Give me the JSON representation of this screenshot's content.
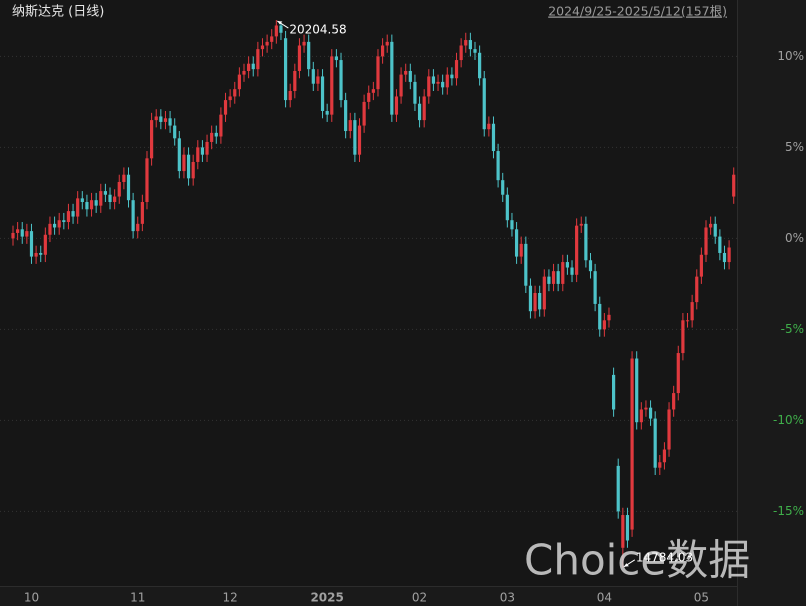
{
  "chart_data": {
    "type": "candlestick",
    "title": "纳斯达克 (日线)",
    "range_label": "2024/9/25-2025/5/12(157根)",
    "watermark": "Choice数据",
    "annotations": [
      {
        "text": "20204.58"
      },
      {
        "text": "14784.03"
      }
    ],
    "up_color": "#e0393e",
    "down_color": "#4dc3c9",
    "negative_tick_color": "#3fae4a",
    "tick_color": "#a0a0a0",
    "grid": true,
    "ylim": [
      -19.1,
      13.1
    ],
    "yticks": [
      {
        "value": 10,
        "label": "10%"
      },
      {
        "value": 5,
        "label": "5%"
      },
      {
        "value": 0,
        "label": "0%"
      },
      {
        "value": -5,
        "label": "-5%"
      },
      {
        "value": -10,
        "label": "-10%"
      },
      {
        "value": -15,
        "label": "-15%"
      }
    ],
    "categories": [
      null,
      null,
      null,
      null,
      "10",
      null,
      null,
      null,
      null,
      null,
      null,
      null,
      null,
      null,
      null,
      null,
      null,
      null,
      null,
      null,
      null,
      null,
      null,
      null,
      null,
      null,
      null,
      "11",
      null,
      null,
      null,
      null,
      null,
      null,
      null,
      null,
      null,
      null,
      null,
      null,
      null,
      null,
      null,
      null,
      null,
      null,
      null,
      "12",
      null,
      null,
      null,
      null,
      null,
      null,
      null,
      null,
      null,
      null,
      null,
      null,
      null,
      null,
      null,
      null,
      null,
      null,
      null,
      null,
      "2025",
      null,
      null,
      null,
      null,
      null,
      null,
      null,
      null,
      null,
      null,
      null,
      null,
      null,
      null,
      null,
      null,
      null,
      null,
      null,
      "02",
      null,
      null,
      null,
      null,
      null,
      null,
      null,
      null,
      null,
      null,
      null,
      null,
      null,
      null,
      null,
      null,
      null,
      null,
      "03",
      null,
      null,
      null,
      null,
      null,
      null,
      null,
      null,
      null,
      null,
      null,
      null,
      null,
      null,
      null,
      null,
      null,
      null,
      null,
      null,
      "04",
      null,
      null,
      null,
      null,
      null,
      null,
      null,
      null,
      null,
      null,
      null,
      null,
      null,
      null,
      null,
      null,
      null,
      null,
      null,
      null,
      "05",
      null,
      null,
      null,
      null,
      null,
      null,
      null
    ],
    "open": [
      0.0,
      0.3,
      0.5,
      0.1,
      0.4,
      -1.0,
      -0.8,
      -0.9,
      0.2,
      0.8,
      0.6,
      1.0,
      0.9,
      1.5,
      1.2,
      2.2,
      2.0,
      1.6,
      2.1,
      1.8,
      2.6,
      2.4,
      2.0,
      2.3,
      3.1,
      3.5,
      2.1,
      0.4,
      0.8,
      2.0,
      4.4,
      6.5,
      6.7,
      6.4,
      6.6,
      6.2,
      5.5,
      3.7,
      4.6,
      3.3,
      4.2,
      5.0,
      4.6,
      5.3,
      5.8,
      5.6,
      6.8,
      7.6,
      7.8,
      8.2,
      9.0,
      9.2,
      9.6,
      9.3,
      10.4,
      10.6,
      10.8,
      11.1,
      11.7,
      11.0,
      7.6,
      8.1,
      9.2,
      10.6,
      10.8,
      9.3,
      8.5,
      8.9,
      7.0,
      6.8,
      10.0,
      9.8,
      7.6,
      5.9,
      6.5,
      4.6,
      6.2,
      7.5,
      8.0,
      8.2,
      10.0,
      10.6,
      10.8,
      6.8,
      7.8,
      9.0,
      9.2,
      8.6,
      7.4,
      6.5,
      7.8,
      8.9,
      8.5,
      8.6,
      8.3,
      9.0,
      8.8,
      9.8,
      10.6,
      10.9,
      10.4,
      10.2,
      8.8,
      6.0,
      6.3,
      4.8,
      3.2,
      2.4,
      1.0,
      0.5,
      -1.0,
      -0.3,
      -2.6,
      -4.0,
      -3.0,
      -3.9,
      -2.1,
      -2.5,
      -1.8,
      -2.5,
      -1.3,
      -1.6,
      -2.0,
      0.7,
      0.8,
      -1.2,
      -1.8,
      -3.6,
      -5.0,
      -4.5,
      -7.5,
      -12.5,
      -17.0,
      -15.2,
      -16.0,
      -6.6,
      -10.1,
      -9.4,
      -9.3,
      -9.9,
      -12.6,
      -12.3,
      -11.6,
      -9.4,
      -8.5,
      -6.3,
      -4.5,
      -4.5,
      -3.5,
      -2.1,
      -0.9,
      0.6,
      0.8,
      0.1,
      -0.8,
      -1.3,
      2.3
    ],
    "high": [
      0.7,
      0.9,
      0.9,
      0.8,
      0.8,
      -0.4,
      -0.4,
      0.6,
      1.2,
      1.2,
      1.4,
      1.4,
      1.9,
      1.9,
      2.6,
      2.6,
      2.4,
      2.5,
      2.5,
      3.0,
      3.0,
      2.8,
      2.7,
      3.5,
      3.9,
      3.9,
      2.5,
      1.2,
      2.4,
      4.8,
      6.9,
      7.1,
      7.1,
      7.0,
      7.0,
      6.6,
      5.9,
      5.0,
      5.0,
      4.6,
      5.4,
      5.4,
      5.7,
      6.2,
      6.2,
      7.2,
      8.0,
      8.2,
      8.6,
      9.4,
      9.6,
      10.0,
      10.0,
      10.8,
      11.0,
      11.2,
      11.5,
      12.0,
      11.8,
      11.4,
      8.5,
      9.6,
      11.0,
      11.2,
      11.2,
      9.7,
      9.3,
      9.3,
      7.4,
      10.4,
      10.4,
      10.2,
      8.0,
      6.9,
      6.9,
      6.6,
      7.9,
      8.4,
      8.6,
      10.4,
      11.0,
      11.2,
      11.2,
      8.2,
      9.4,
      9.6,
      9.6,
      9.0,
      7.8,
      8.2,
      9.3,
      9.3,
      9.0,
      9.0,
      9.4,
      9.4,
      10.2,
      11.0,
      11.3,
      11.3,
      10.8,
      10.6,
      9.2,
      6.7,
      6.7,
      5.2,
      3.6,
      2.8,
      1.4,
      0.9,
      0.1,
      0.1,
      -2.2,
      -2.6,
      -2.6,
      -1.7,
      -1.7,
      -1.4,
      -1.4,
      -0.9,
      -0.9,
      -1.2,
      1.1,
      1.2,
      1.2,
      -0.8,
      -1.4,
      -3.2,
      -4.1,
      -3.8,
      -7.1,
      -12.1,
      -14.8,
      -14.8,
      -6.2,
      -6.2,
      -9.0,
      -8.9,
      -8.9,
      -9.5,
      -11.9,
      -11.2,
      -9.0,
      -8.1,
      -5.9,
      -4.1,
      -4.1,
      -3.1,
      -1.7,
      -0.5,
      1.0,
      1.2,
      1.2,
      0.5,
      -0.4,
      -0.1,
      3.9
    ],
    "low": [
      -0.4,
      -0.1,
      -0.3,
      -0.3,
      -1.4,
      -1.4,
      -1.3,
      -1.3,
      -0.2,
      0.2,
      0.2,
      0.5,
      0.5,
      0.8,
      0.8,
      1.6,
      1.2,
      1.2,
      1.4,
      1.4,
      2.0,
      1.6,
      1.6,
      1.9,
      2.7,
      1.7,
      0.0,
      0.0,
      0.4,
      1.6,
      4.0,
      6.1,
      6.0,
      6.0,
      5.8,
      5.1,
      3.3,
      3.3,
      2.9,
      2.9,
      3.8,
      4.2,
      4.2,
      4.9,
      5.2,
      5.2,
      6.4,
      7.2,
      7.4,
      7.8,
      8.6,
      8.8,
      8.9,
      8.9,
      10.0,
      10.2,
      10.4,
      10.7,
      10.9,
      7.2,
      7.2,
      7.7,
      8.8,
      10.2,
      8.9,
      8.1,
      8.1,
      6.6,
      6.4,
      6.4,
      9.4,
      7.2,
      5.5,
      5.5,
      4.2,
      4.2,
      5.8,
      7.1,
      7.6,
      7.8,
      9.6,
      10.2,
      6.4,
      6.4,
      7.4,
      8.6,
      8.2,
      7.0,
      6.1,
      6.1,
      7.4,
      8.1,
      8.1,
      7.9,
      7.9,
      8.4,
      8.4,
      9.4,
      10.2,
      10.0,
      9.8,
      8.4,
      5.6,
      5.6,
      4.4,
      2.8,
      2.0,
      0.6,
      0.1,
      -1.4,
      -1.4,
      -3.0,
      -4.4,
      -4.4,
      -4.3,
      -4.3,
      -2.9,
      -2.9,
      -2.9,
      -2.9,
      -2.0,
      -2.4,
      -2.4,
      0.3,
      -1.6,
      -2.2,
      -4.0,
      -5.4,
      -5.4,
      -4.9,
      -9.8,
      -15.4,
      -18.1,
      -17.0,
      -16.4,
      -10.5,
      -10.5,
      -9.8,
      -10.3,
      -13.0,
      -13.0,
      -12.7,
      -12.0,
      -9.8,
      -8.9,
      -6.7,
      -4.9,
      -4.9,
      -3.9,
      -2.5,
      -1.3,
      0.2,
      -0.3,
      -1.2,
      -1.7,
      -1.7,
      1.9
    ],
    "close": [
      0.3,
      0.5,
      0.1,
      0.4,
      -1.0,
      -0.8,
      -0.9,
      0.2,
      0.8,
      0.6,
      1.0,
      0.9,
      1.5,
      1.2,
      2.2,
      2.0,
      1.6,
      2.1,
      1.8,
      2.6,
      2.4,
      2.0,
      2.3,
      3.1,
      3.5,
      2.1,
      0.4,
      0.8,
      2.0,
      4.4,
      6.5,
      6.7,
      6.4,
      6.6,
      6.2,
      5.5,
      3.7,
      4.6,
      3.3,
      4.2,
      5.0,
      4.6,
      5.3,
      5.8,
      5.6,
      6.8,
      7.6,
      7.8,
      8.2,
      9.0,
      9.2,
      9.6,
      9.3,
      10.4,
      10.6,
      10.8,
      11.1,
      11.7,
      11.3,
      7.6,
      8.1,
      9.2,
      10.6,
      10.8,
      9.3,
      8.5,
      8.9,
      7.0,
      6.8,
      10.0,
      9.8,
      7.6,
      5.9,
      6.5,
      4.6,
      6.2,
      7.5,
      8.0,
      8.2,
      10.0,
      10.6,
      10.8,
      6.8,
      7.8,
      9.0,
      9.2,
      8.6,
      7.4,
      6.5,
      7.8,
      8.9,
      8.5,
      8.6,
      8.3,
      9.0,
      8.8,
      9.8,
      10.6,
      10.9,
      10.4,
      10.2,
      8.8,
      6.0,
      6.3,
      4.8,
      3.2,
      2.4,
      1.0,
      0.5,
      -1.0,
      -0.3,
      -2.6,
      -4.0,
      -3.0,
      -3.9,
      -2.1,
      -2.5,
      -1.8,
      -2.5,
      -1.3,
      -1.6,
      -2.0,
      0.7,
      0.8,
      -1.2,
      -1.8,
      -3.6,
      -5.0,
      -4.5,
      -4.2,
      -9.4,
      -15.0,
      -15.2,
      -16.6,
      -6.6,
      -10.1,
      -9.4,
      -9.3,
      -9.9,
      -12.6,
      -12.3,
      -11.6,
      -9.4,
      -8.5,
      -6.3,
      -4.5,
      -4.5,
      -3.5,
      -2.1,
      -0.9,
      0.6,
      0.8,
      0.1,
      -0.8,
      -1.3,
      -0.5,
      3.5
    ]
  }
}
